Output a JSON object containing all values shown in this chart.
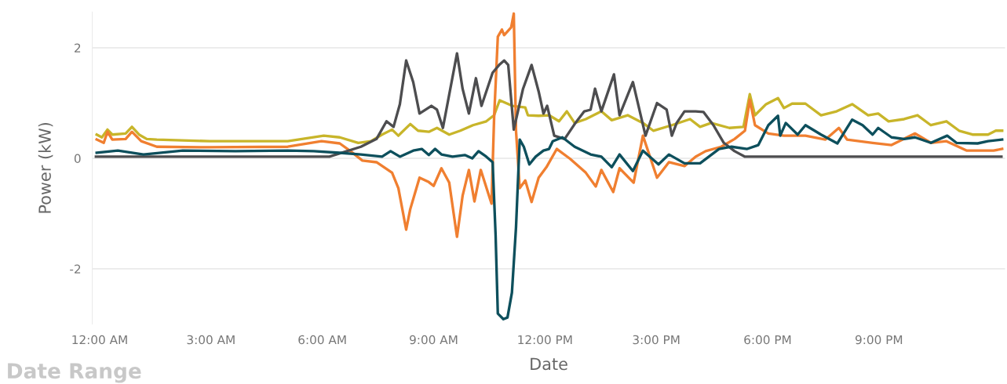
{
  "chart_data": {
    "type": "line",
    "xlabel": "Date",
    "ylabel": "Power (kW)",
    "annotations": [
      "Date Range"
    ],
    "xlim": [
      -0.2,
      24.4
    ],
    "ylim": [
      -3,
      2.65
    ],
    "yticks": [
      -2,
      0,
      2
    ],
    "xticks": [
      {
        "value": 0,
        "label": "12:00 AM"
      },
      {
        "value": 3,
        "label": "3:00 AM"
      },
      {
        "value": 6,
        "label": "6:00 AM"
      },
      {
        "value": 9,
        "label": "9:00 AM"
      },
      {
        "value": 12,
        "label": "12:00 PM"
      },
      {
        "value": 15,
        "label": "3:00 PM"
      },
      {
        "value": 18,
        "label": "6:00 PM"
      },
      {
        "value": 21,
        "label": "9:00 PM"
      }
    ],
    "grid": "y",
    "series": [
      {
        "color": "#c8b52a",
        "x": [
          -0.08,
          0.06,
          0.21,
          0.34,
          0.7,
          0.87,
          1.06,
          1.27,
          1.54,
          2.96,
          5.07,
          6.04,
          6.47,
          6.97,
          7.31,
          7.61,
          7.88,
          8.05,
          8.37,
          8.58,
          8.87,
          9.09,
          9.42,
          9.72,
          10.06,
          10.42,
          10.63,
          10.78,
          11.12,
          11.47,
          11.54,
          11.83,
          12.11,
          12.38,
          12.59,
          12.8,
          13.1,
          13.52,
          13.8,
          14.23,
          14.64,
          14.92,
          15.42,
          15.91,
          16.18,
          16.48,
          16.97,
          17.35,
          17.52,
          17.66,
          17.96,
          18.28,
          18.44,
          18.66,
          19.02,
          19.44,
          19.86,
          20.28,
          20.71,
          20.98,
          21.26,
          21.68,
          22.04,
          22.4,
          22.82,
          23.16,
          23.52,
          23.94,
          24.15,
          24.32
        ],
        "values": [
          0.43,
          0.38,
          0.52,
          0.43,
          0.45,
          0.57,
          0.43,
          0.35,
          0.34,
          0.31,
          0.31,
          0.41,
          0.38,
          0.28,
          0.31,
          0.43,
          0.52,
          0.41,
          0.62,
          0.5,
          0.48,
          0.55,
          0.43,
          0.5,
          0.6,
          0.67,
          0.78,
          1.05,
          0.95,
          0.92,
          0.78,
          0.77,
          0.78,
          0.67,
          0.85,
          0.64,
          0.71,
          0.85,
          0.69,
          0.78,
          0.64,
          0.5,
          0.6,
          0.71,
          0.57,
          0.64,
          0.55,
          0.57,
          1.16,
          0.78,
          0.98,
          1.09,
          0.91,
          0.99,
          0.99,
          0.78,
          0.85,
          0.98,
          0.78,
          0.81,
          0.67,
          0.71,
          0.78,
          0.6,
          0.67,
          0.5,
          0.43,
          0.43,
          0.5,
          0.5
        ]
      },
      {
        "color": "#f07f30",
        "x": [
          -0.08,
          0.11,
          0.21,
          0.34,
          0.7,
          0.87,
          1.12,
          1.54,
          2.96,
          5.07,
          5.98,
          6.47,
          6.76,
          7.08,
          7.46,
          7.88,
          8.05,
          8.26,
          8.37,
          8.62,
          8.87,
          9.0,
          9.21,
          9.42,
          9.63,
          9.78,
          9.95,
          10.1,
          10.27,
          10.56,
          10.63,
          10.73,
          10.84,
          10.9,
          11.09,
          11.16,
          11.22,
          11.32,
          11.47,
          11.64,
          11.83,
          12.04,
          12.32,
          12.68,
          13.1,
          13.37,
          13.52,
          13.84,
          14.01,
          14.39,
          14.64,
          15.02,
          15.34,
          15.76,
          16.06,
          16.33,
          16.75,
          17.11,
          17.39,
          17.52,
          17.66,
          18.02,
          18.44,
          19.02,
          19.56,
          19.92,
          20.14,
          20.83,
          21.34,
          21.97,
          22.4,
          22.82,
          23.37,
          24.09,
          24.32
        ],
        "values": [
          0.34,
          0.28,
          0.48,
          0.34,
          0.35,
          0.48,
          0.31,
          0.21,
          0.2,
          0.21,
          0.31,
          0.27,
          0.13,
          -0.04,
          -0.07,
          -0.26,
          -0.54,
          -1.29,
          -0.92,
          -0.35,
          -0.43,
          -0.5,
          -0.18,
          -0.44,
          -1.42,
          -0.68,
          -0.21,
          -0.78,
          -0.21,
          -0.82,
          0.74,
          2.2,
          2.33,
          2.23,
          2.37,
          2.62,
          0.5,
          -0.54,
          -0.4,
          -0.79,
          -0.35,
          -0.16,
          0.17,
          -0.01,
          -0.26,
          -0.51,
          -0.21,
          -0.61,
          -0.18,
          -0.44,
          0.41,
          -0.35,
          -0.07,
          -0.14,
          0.03,
          0.13,
          0.21,
          0.35,
          0.5,
          1.06,
          0.6,
          0.45,
          0.41,
          0.41,
          0.34,
          0.55,
          0.34,
          0.28,
          0.24,
          0.45,
          0.28,
          0.31,
          0.14,
          0.14,
          0.17
        ]
      },
      {
        "color": "#4d4d4f",
        "x": [
          -0.1,
          6.19,
          7.04,
          7.46,
          7.73,
          7.92,
          8.09,
          8.26,
          8.45,
          8.62,
          8.94,
          9.09,
          9.25,
          9.63,
          9.78,
          9.95,
          10.14,
          10.29,
          10.59,
          10.78,
          10.9,
          11.01,
          11.16,
          11.41,
          11.64,
          11.83,
          11.96,
          12.06,
          12.25,
          12.53,
          12.8,
          13.06,
          13.23,
          13.35,
          13.52,
          13.86,
          14.01,
          14.37,
          14.71,
          15.02,
          15.28,
          15.42,
          15.55,
          15.76,
          16.06,
          16.27,
          16.54,
          16.82,
          17.11,
          17.39,
          24.3
        ],
        "values": [
          0.03,
          0.03,
          0.21,
          0.35,
          0.67,
          0.57,
          0.98,
          1.77,
          1.38,
          0.81,
          0.95,
          0.88,
          0.55,
          1.9,
          1.26,
          0.81,
          1.45,
          0.95,
          1.55,
          1.7,
          1.77,
          1.69,
          0.52,
          1.26,
          1.69,
          1.21,
          0.81,
          0.95,
          0.41,
          0.35,
          0.62,
          0.85,
          0.88,
          1.26,
          0.85,
          1.52,
          0.78,
          1.38,
          0.41,
          1.0,
          0.88,
          0.41,
          0.64,
          0.85,
          0.85,
          0.84,
          0.6,
          0.28,
          0.13,
          0.03,
          0.03
        ]
      },
      {
        "color": "#0d4f5c",
        "x": [
          -0.08,
          0.49,
          1.18,
          2.24,
          3.66,
          5.07,
          5.77,
          6.47,
          7.04,
          7.61,
          7.84,
          8.09,
          8.45,
          8.68,
          8.87,
          9.04,
          9.21,
          9.51,
          9.84,
          10.04,
          10.21,
          10.42,
          10.59,
          10.67,
          10.73,
          10.88,
          10.99,
          11.11,
          11.22,
          11.32,
          11.43,
          11.58,
          11.75,
          11.96,
          12.11,
          12.21,
          12.47,
          12.8,
          13.23,
          13.52,
          13.8,
          14.01,
          14.37,
          14.64,
          15.06,
          15.34,
          15.76,
          16.18,
          16.69,
          17.03,
          17.45,
          17.75,
          18.02,
          18.28,
          18.34,
          18.49,
          18.81,
          19.02,
          19.44,
          19.88,
          20.28,
          20.56,
          20.83,
          20.98,
          21.34,
          21.68,
          21.97,
          22.4,
          22.84,
          23.09,
          23.66,
          23.94,
          24.32
        ],
        "values": [
          0.1,
          0.14,
          0.07,
          0.14,
          0.13,
          0.14,
          0.13,
          0.1,
          0.07,
          0.03,
          0.13,
          0.03,
          0.14,
          0.17,
          0.06,
          0.17,
          0.07,
          0.03,
          0.06,
          0.0,
          0.13,
          0.03,
          -0.07,
          -1.39,
          -2.81,
          -2.91,
          -2.88,
          -2.43,
          -1.25,
          0.34,
          0.21,
          -0.11,
          0.03,
          0.14,
          0.17,
          0.31,
          0.38,
          0.21,
          0.07,
          0.03,
          -0.16,
          0.07,
          -0.23,
          0.14,
          -0.11,
          0.07,
          -0.09,
          -0.09,
          0.17,
          0.21,
          0.17,
          0.24,
          0.6,
          0.77,
          0.41,
          0.64,
          0.43,
          0.6,
          0.43,
          0.27,
          0.7,
          0.6,
          0.43,
          0.55,
          0.38,
          0.35,
          0.38,
          0.28,
          0.41,
          0.28,
          0.27,
          0.31,
          0.34
        ]
      }
    ]
  }
}
